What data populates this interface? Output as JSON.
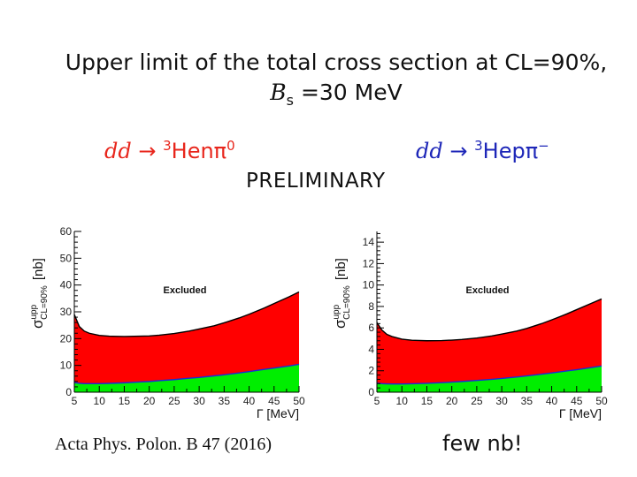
{
  "header": {
    "title_line1": "Upper limit of the total cross section at CL=90%,",
    "title_line2_symbol": "B",
    "title_line2_sub": "s",
    "title_line2_rest": " =30 MeV",
    "preliminary": "PRELIMINARY"
  },
  "reactions": {
    "left": {
      "prefix": "dd",
      "arrow": " → ",
      "mass": "3",
      "rest": "Henπ",
      "charge": "0"
    },
    "right": {
      "prefix": "dd",
      "arrow": " → ",
      "mass": "3",
      "rest": "Hepπ",
      "charge": "−"
    }
  },
  "footer": {
    "citation": "Acta Phys. Polon. B 47 (2016)",
    "note": "few  nb!"
  },
  "colors": {
    "excluded": "#ff0000",
    "lower_band": "#00ee00",
    "boundary": "#000000",
    "lower_line": "#1a2bd6",
    "left_reaction": "#e8261c",
    "right_reaction": "#1d26b8"
  },
  "chart_data": [
    {
      "type": "area",
      "xlabel": "Γ [MeV]",
      "ylabel": "σ",
      "ylabel_sup": "upp",
      "ylabel_sub": "CL=90%",
      "ylabel_unit": "[nb]",
      "region_label": "Excluded",
      "xlim": [
        5,
        50
      ],
      "ylim": [
        0,
        60
      ],
      "xticks": [
        5,
        10,
        15,
        20,
        25,
        30,
        35,
        40,
        45,
        50
      ],
      "yticks": [
        0,
        10,
        20,
        30,
        40,
        50,
        60
      ],
      "x": [
        5,
        6,
        7,
        8,
        10,
        12,
        15,
        18,
        20,
        22,
        25,
        28,
        30,
        33,
        35,
        38,
        40,
        43,
        45,
        48,
        50
      ],
      "series": [
        {
          "role": "upper-limit",
          "values": [
            29.0,
            24.5,
            22.8,
            22.0,
            21.2,
            20.9,
            20.8,
            20.9,
            21.0,
            21.3,
            21.9,
            22.8,
            23.6,
            24.8,
            25.9,
            27.7,
            29.1,
            31.4,
            33.1,
            35.6,
            37.4
          ]
        },
        {
          "role": "lower-band",
          "values": [
            3.6,
            3.3,
            3.2,
            3.2,
            3.2,
            3.3,
            3.5,
            3.8,
            4.0,
            4.3,
            4.7,
            5.2,
            5.5,
            6.1,
            6.5,
            7.2,
            7.7,
            8.5,
            9.0,
            9.8,
            10.4
          ]
        }
      ]
    },
    {
      "type": "area",
      "xlabel": "Γ [MeV]",
      "ylabel": "σ",
      "ylabel_sup": "upp",
      "ylabel_sub": "CL=90%",
      "ylabel_unit": "[nb]",
      "region_label": "Excluded",
      "xlim": [
        5,
        50
      ],
      "ylim": [
        0,
        15
      ],
      "xticks": [
        5,
        10,
        15,
        20,
        25,
        30,
        35,
        40,
        45,
        50
      ],
      "yticks": [
        0,
        2,
        4,
        6,
        8,
        10,
        12,
        14
      ],
      "x": [
        5,
        6,
        7,
        8,
        10,
        12,
        15,
        18,
        20,
        22,
        25,
        28,
        30,
        33,
        35,
        38,
        40,
        43,
        45,
        48,
        50
      ],
      "series": [
        {
          "role": "upper-limit",
          "values": [
            6.5,
            5.8,
            5.4,
            5.2,
            4.95,
            4.85,
            4.8,
            4.82,
            4.86,
            4.92,
            5.05,
            5.25,
            5.42,
            5.7,
            5.95,
            6.4,
            6.75,
            7.3,
            7.7,
            8.3,
            8.7
          ]
        },
        {
          "role": "lower-band",
          "values": [
            0.85,
            0.8,
            0.78,
            0.77,
            0.77,
            0.79,
            0.83,
            0.89,
            0.94,
            1.0,
            1.1,
            1.2,
            1.28,
            1.42,
            1.52,
            1.68,
            1.8,
            1.98,
            2.1,
            2.3,
            2.45
          ]
        }
      ]
    }
  ]
}
